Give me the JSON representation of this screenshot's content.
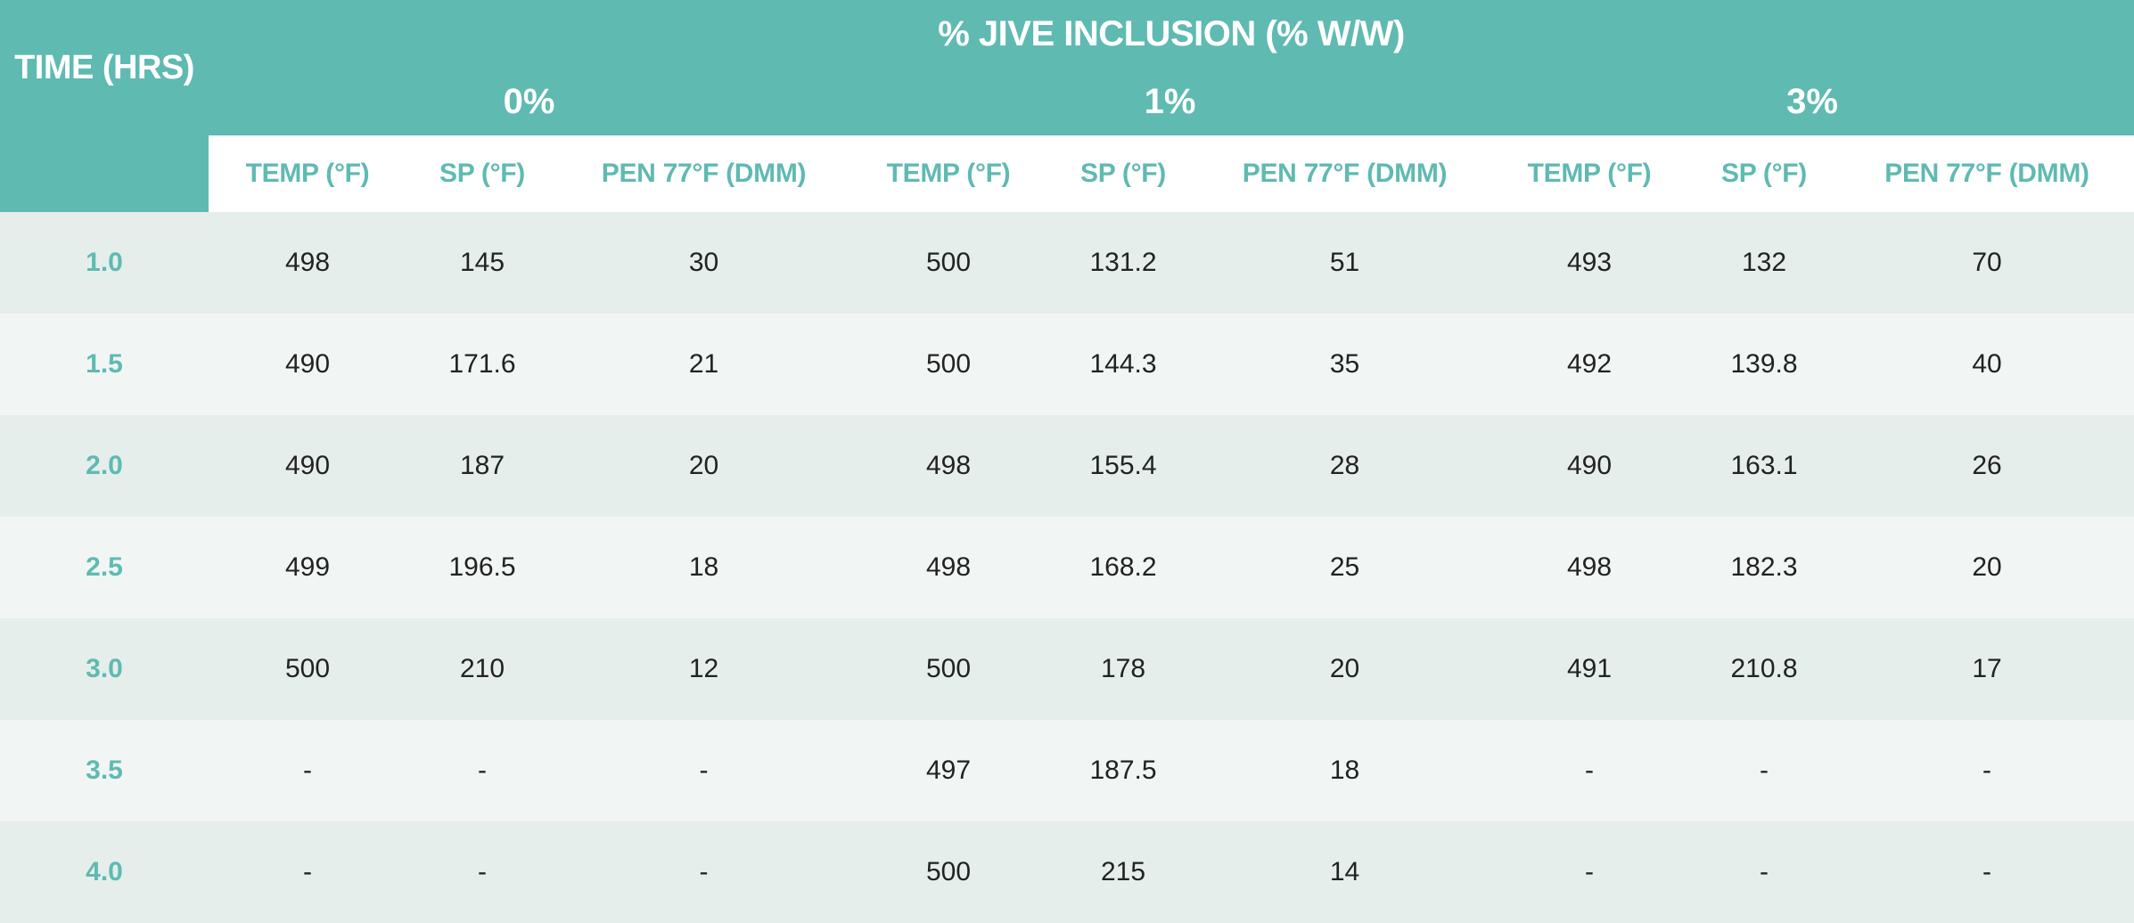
{
  "table": {
    "title": "% JIVE INCLUSION (% W/W)",
    "time_header": "TIME (HRS)",
    "groups": [
      "0%",
      "1%",
      "3%"
    ],
    "sub_headers": [
      "TEMP (°F)",
      "SP (°F)",
      "PEN 77°F (DMM)",
      "TEMP (°F)",
      "SP (°F)",
      "PEN 77°F (DMM)",
      "TEMP (°F)",
      "SP (°F)",
      "PEN 77°F (DMM)"
    ],
    "rows": [
      [
        "1.0",
        "498",
        "145",
        "30",
        "500",
        "131.2",
        "51",
        "493",
        "132",
        "70"
      ],
      [
        "1.5",
        "490",
        "171.6",
        "21",
        "500",
        "144.3",
        "35",
        "492",
        "139.8",
        "40"
      ],
      [
        "2.0",
        "490",
        "187",
        "20",
        "498",
        "155.4",
        "28",
        "490",
        "163.1",
        "26"
      ],
      [
        "2.5",
        "499",
        "196.5",
        "18",
        "498",
        "168.2",
        "25",
        "498",
        "182.3",
        "20"
      ],
      [
        "3.0",
        "500",
        "210",
        "12",
        "500",
        "178",
        "20",
        "491",
        "210.8",
        "17"
      ],
      [
        "3.5",
        "-",
        "-",
        "-",
        "497",
        "187.5",
        "18",
        "-",
        "-",
        "-"
      ],
      [
        "4.0",
        "-",
        "-",
        "-",
        "500",
        "215",
        "14",
        "-",
        "-",
        "-"
      ]
    ]
  },
  "colors": {
    "accent": "#5fbab2",
    "row_dark": "#e5eeeb",
    "row_light": "#f1f6f5",
    "text": "#222222"
  }
}
